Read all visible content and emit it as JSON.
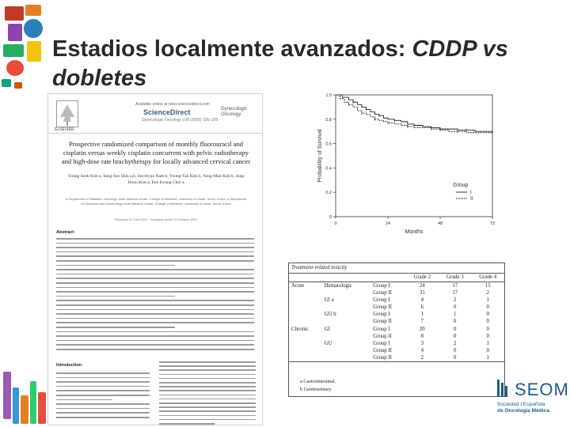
{
  "slide": {
    "title_plain": "Estadios localmente avanzados: ",
    "title_italic": "CDDP vs dobletes"
  },
  "article": {
    "publisher": "ELSEVIER",
    "journal_line": "Available online at www.sciencedirect.com",
    "sciencedirect": "ScienceDirect",
    "sd_sub": "Gynecologic Oncology 108 (2008) 195–200",
    "journal_name_1": "Gynecologic",
    "journal_name_2": "Oncology",
    "title": "Prospective randomized comparison of monthly fluorouracil and cisplatin versus weekly cisplatin concurrent with pelvic radiotherapy and high-dose rate brachytherapy for locally advanced cervical cancer",
    "authors": "Young Seok Kim a, Sang Soo Shin a,b, Joo-Hyun Nam b, Young-Tak Kim b, Yong-Man Kim b, Jong Hoon Kim a, Eun Kyung Choi a",
    "affiliations": "a Department of Radiation Oncology, Asan Medical Center, College of Medicine, University of Ulsan, Seoul, Korea; b Department of Obstetrics and Gynecology, Asan Medical Center, College of Medicine, University of Ulsan, Seoul, Korea",
    "received": "Received 20 June 2007 · Available online 29 October 2007",
    "abstract_heading": "Abstract",
    "intro_heading": "Introduction"
  },
  "survival_chart": {
    "y_label": "Probability of Survival",
    "x_label": "Months",
    "legend_title": "Group",
    "legend_items": [
      "I",
      "II"
    ]
  },
  "chart_data": {
    "type": "line",
    "title": "",
    "xlabel": "Months",
    "ylabel": "Probability of Survival",
    "xlim": [
      0,
      72
    ],
    "ylim": [
      0,
      1.0
    ],
    "x_ticks": [
      0,
      24,
      48,
      72
    ],
    "y_ticks": [
      0,
      0.2,
      0.4,
      0.6,
      0.8,
      1.0
    ],
    "x_tick_labels": [
      "0",
      "24",
      "48",
      "72"
    ],
    "y_tick_labels": [
      "0",
      "0.2",
      "0.4",
      "0.6",
      "0.8",
      "1.0"
    ],
    "series": [
      {
        "name": "I",
        "x": [
          0,
          3,
          6,
          8,
          10,
          12,
          14,
          16,
          18,
          20,
          22,
          24,
          27,
          30,
          33,
          36,
          40,
          44,
          48,
          52,
          56,
          60,
          64,
          68,
          72
        ],
        "y": [
          1.0,
          0.98,
          0.96,
          0.94,
          0.92,
          0.9,
          0.88,
          0.86,
          0.84,
          0.83,
          0.81,
          0.8,
          0.79,
          0.78,
          0.76,
          0.75,
          0.74,
          0.73,
          0.72,
          0.72,
          0.71,
          0.71,
          0.7,
          0.7,
          0.7
        ]
      },
      {
        "name": "II",
        "x": [
          0,
          2,
          4,
          6,
          8,
          10,
          12,
          14,
          16,
          18,
          20,
          22,
          24,
          27,
          30,
          33,
          36,
          40,
          44,
          48,
          52,
          56,
          60,
          64,
          72
        ],
        "y": [
          1.0,
          0.97,
          0.94,
          0.92,
          0.9,
          0.87,
          0.85,
          0.84,
          0.82,
          0.8,
          0.79,
          0.78,
          0.77,
          0.76,
          0.75,
          0.74,
          0.73,
          0.73,
          0.72,
          0.71,
          0.7,
          0.7,
          0.69,
          0.69,
          0.69
        ]
      }
    ]
  },
  "toxicity_table": {
    "caption": "Treatment-related toxicity",
    "columns": [
      "",
      "",
      "",
      "Grade 2",
      "Grade 3",
      "Grade 4"
    ],
    "rows": [
      [
        "Acute",
        "Hematologic",
        "Group I",
        "24",
        "17",
        "15"
      ],
      [
        "",
        "",
        "Group II",
        "35",
        "17",
        "2"
      ],
      [
        "",
        "GI a",
        "Group I",
        "4",
        "2",
        "1"
      ],
      [
        "",
        "",
        "Group II",
        "6",
        "0",
        "0"
      ],
      [
        "",
        "GU b",
        "Group I",
        "1",
        "1",
        "0"
      ],
      [
        "",
        "",
        "Group II",
        "7",
        "0",
        "0"
      ],
      [
        "Chronic",
        "GI",
        "Group I",
        "20",
        "0",
        "0"
      ],
      [
        "",
        "",
        "Group II",
        "8",
        "0",
        "0"
      ],
      [
        "",
        "GU",
        "Group I",
        "3",
        "2",
        "1"
      ],
      [
        "",
        "",
        "Group II",
        "4",
        "0",
        "0"
      ],
      [
        "",
        "",
        "Group II",
        "2",
        "0",
        "1"
      ]
    ],
    "footnotes": [
      "a Gastrointestinal.",
      "b Genitourinary."
    ]
  },
  "seom": {
    "name": "SEOM",
    "line1a": "Sociedad",
    "line1b": "Española",
    "line2": "de Oncología Médica"
  },
  "colors": {
    "title": "#2a2a2a",
    "seom_blue": "#1d5f8a"
  }
}
